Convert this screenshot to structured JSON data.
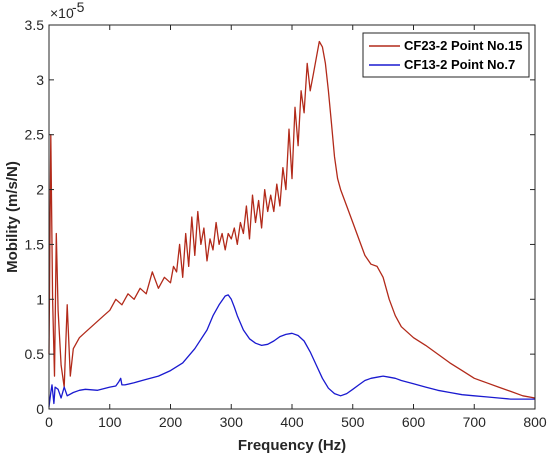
{
  "chart_data": {
    "type": "line",
    "title": "",
    "xlabel": "Frequency (Hz)",
    "ylabel": "Mobility (m/s/N)",
    "xlim": [
      0,
      800
    ],
    "ylim": [
      0,
      3.5
    ],
    "y_exponent_label": "×10",
    "y_exponent_power": "-5",
    "x_ticks": [
      "0",
      "100",
      "200",
      "300",
      "400",
      "500",
      "600",
      "700",
      "800"
    ],
    "y_ticks": [
      "0",
      "0.5",
      "1",
      "1.5",
      "2",
      "2.5",
      "3",
      "3.5"
    ],
    "grid": false,
    "legend_position": "top-right",
    "series": [
      {
        "name": "CF23-2 Point No.15",
        "color": "#b22a1a",
        "x": [
          0,
          3,
          6,
          9,
          12,
          15,
          20,
          25,
          30,
          35,
          40,
          50,
          60,
          70,
          80,
          90,
          100,
          110,
          120,
          130,
          140,
          150,
          160,
          170,
          180,
          190,
          200,
          205,
          210,
          215,
          220,
          225,
          230,
          235,
          240,
          245,
          250,
          255,
          260,
          265,
          270,
          275,
          280,
          285,
          290,
          295,
          300,
          305,
          310,
          315,
          320,
          325,
          330,
          335,
          340,
          345,
          350,
          355,
          360,
          365,
          370,
          375,
          380,
          385,
          390,
          395,
          400,
          405,
          410,
          415,
          420,
          425,
          430,
          435,
          440,
          445,
          450,
          455,
          460,
          465,
          470,
          475,
          480,
          490,
          500,
          510,
          520,
          530,
          540,
          550,
          560,
          570,
          580,
          590,
          600,
          620,
          640,
          660,
          680,
          700,
          720,
          740,
          760,
          780,
          800
        ],
        "y": [
          0.5,
          2.5,
          1.0,
          0.3,
          1.6,
          0.9,
          0.4,
          0.2,
          0.95,
          0.3,
          0.55,
          0.65,
          0.7,
          0.75,
          0.8,
          0.85,
          0.9,
          1.0,
          0.95,
          1.05,
          1.0,
          1.1,
          1.05,
          1.25,
          1.1,
          1.2,
          1.15,
          1.3,
          1.25,
          1.5,
          1.2,
          1.6,
          1.3,
          1.75,
          1.4,
          1.8,
          1.5,
          1.65,
          1.35,
          1.55,
          1.45,
          1.7,
          1.5,
          1.6,
          1.45,
          1.6,
          1.55,
          1.65,
          1.5,
          1.7,
          1.6,
          1.85,
          1.55,
          1.95,
          1.7,
          1.9,
          1.65,
          2.0,
          1.8,
          1.95,
          1.8,
          2.05,
          1.85,
          2.2,
          2.0,
          2.55,
          2.1,
          2.75,
          2.4,
          2.9,
          2.7,
          3.15,
          2.9,
          3.05,
          3.2,
          3.35,
          3.3,
          3.15,
          2.9,
          2.6,
          2.3,
          2.1,
          2.0,
          1.85,
          1.7,
          1.55,
          1.4,
          1.32,
          1.3,
          1.2,
          1.0,
          0.85,
          0.75,
          0.7,
          0.65,
          0.58,
          0.5,
          0.42,
          0.35,
          0.28,
          0.24,
          0.2,
          0.16,
          0.12,
          0.1
        ]
      },
      {
        "name": "CF13-2 Point No.7",
        "color": "#1a1ad0",
        "x": [
          0,
          3,
          5,
          8,
          10,
          15,
          20,
          25,
          30,
          40,
          50,
          60,
          80,
          100,
          110,
          115,
          118,
          120,
          125,
          140,
          160,
          180,
          200,
          220,
          240,
          260,
          270,
          280,
          290,
          295,
          300,
          305,
          310,
          320,
          330,
          340,
          350,
          360,
          370,
          380,
          390,
          400,
          410,
          420,
          430,
          440,
          450,
          460,
          470,
          480,
          490,
          500,
          510,
          520,
          530,
          540,
          550,
          560,
          570,
          580,
          600,
          620,
          640,
          660,
          680,
          700,
          720,
          740,
          760,
          780,
          800
        ],
        "y": [
          0.02,
          0.15,
          0.22,
          0.05,
          0.2,
          0.18,
          0.1,
          0.2,
          0.12,
          0.15,
          0.17,
          0.18,
          0.17,
          0.2,
          0.21,
          0.25,
          0.28,
          0.22,
          0.22,
          0.24,
          0.27,
          0.3,
          0.35,
          0.42,
          0.55,
          0.72,
          0.85,
          0.95,
          1.03,
          1.04,
          1.0,
          0.93,
          0.85,
          0.72,
          0.64,
          0.6,
          0.58,
          0.59,
          0.62,
          0.66,
          0.68,
          0.69,
          0.67,
          0.62,
          0.52,
          0.4,
          0.28,
          0.19,
          0.14,
          0.12,
          0.14,
          0.18,
          0.22,
          0.26,
          0.28,
          0.29,
          0.3,
          0.29,
          0.28,
          0.26,
          0.23,
          0.2,
          0.17,
          0.15,
          0.13,
          0.12,
          0.11,
          0.1,
          0.09,
          0.09,
          0.09
        ]
      }
    ]
  }
}
